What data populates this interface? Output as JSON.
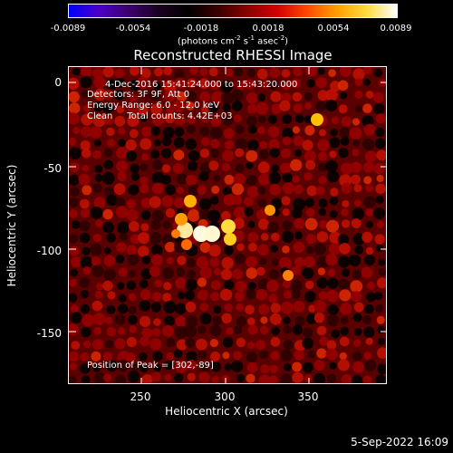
{
  "colorbar": {
    "ticks": [
      "-0.0089",
      "-0.0054",
      "-0.0018",
      "0.0018",
      "0.0054",
      "0.0089"
    ],
    "units_prefix": "(photons cm",
    "units_exp1": "-2",
    "units_mid1": " s",
    "units_exp2": "-1",
    "units_mid2": " asec",
    "units_exp3": "-2",
    "units_suffix": ")",
    "colormap": [
      "#0000ff",
      "#4b00c8",
      "#3d006e",
      "#1a0020",
      "#000000",
      "#3b0000",
      "#8a0000",
      "#d40000",
      "#ff4a00",
      "#ffa000",
      "#ffdd40",
      "#ffffff"
    ]
  },
  "plot": {
    "title": "Reconstructed RHESSI Image",
    "info_lines": [
      "4-Dec-2016 15:41:24.000 to 15:43:20.000",
      "Detectors: 3F 9F, Att 0",
      "Energy Range: 6.0 - 12.0 keV",
      "Clean     Total counts: 4.42E+03"
    ],
    "peak_label": "Position of Peak = [302,-89]",
    "xlabel": "Heliocentric X (arcsec)",
    "ylabel": "Heliocentric Y (arcsec)",
    "xticks": [
      "250",
      "300",
      "350"
    ],
    "yticks": [
      "0",
      "-50",
      "-100",
      "-150"
    ]
  },
  "timestamp": "5-Sep-2022 16:09"
}
